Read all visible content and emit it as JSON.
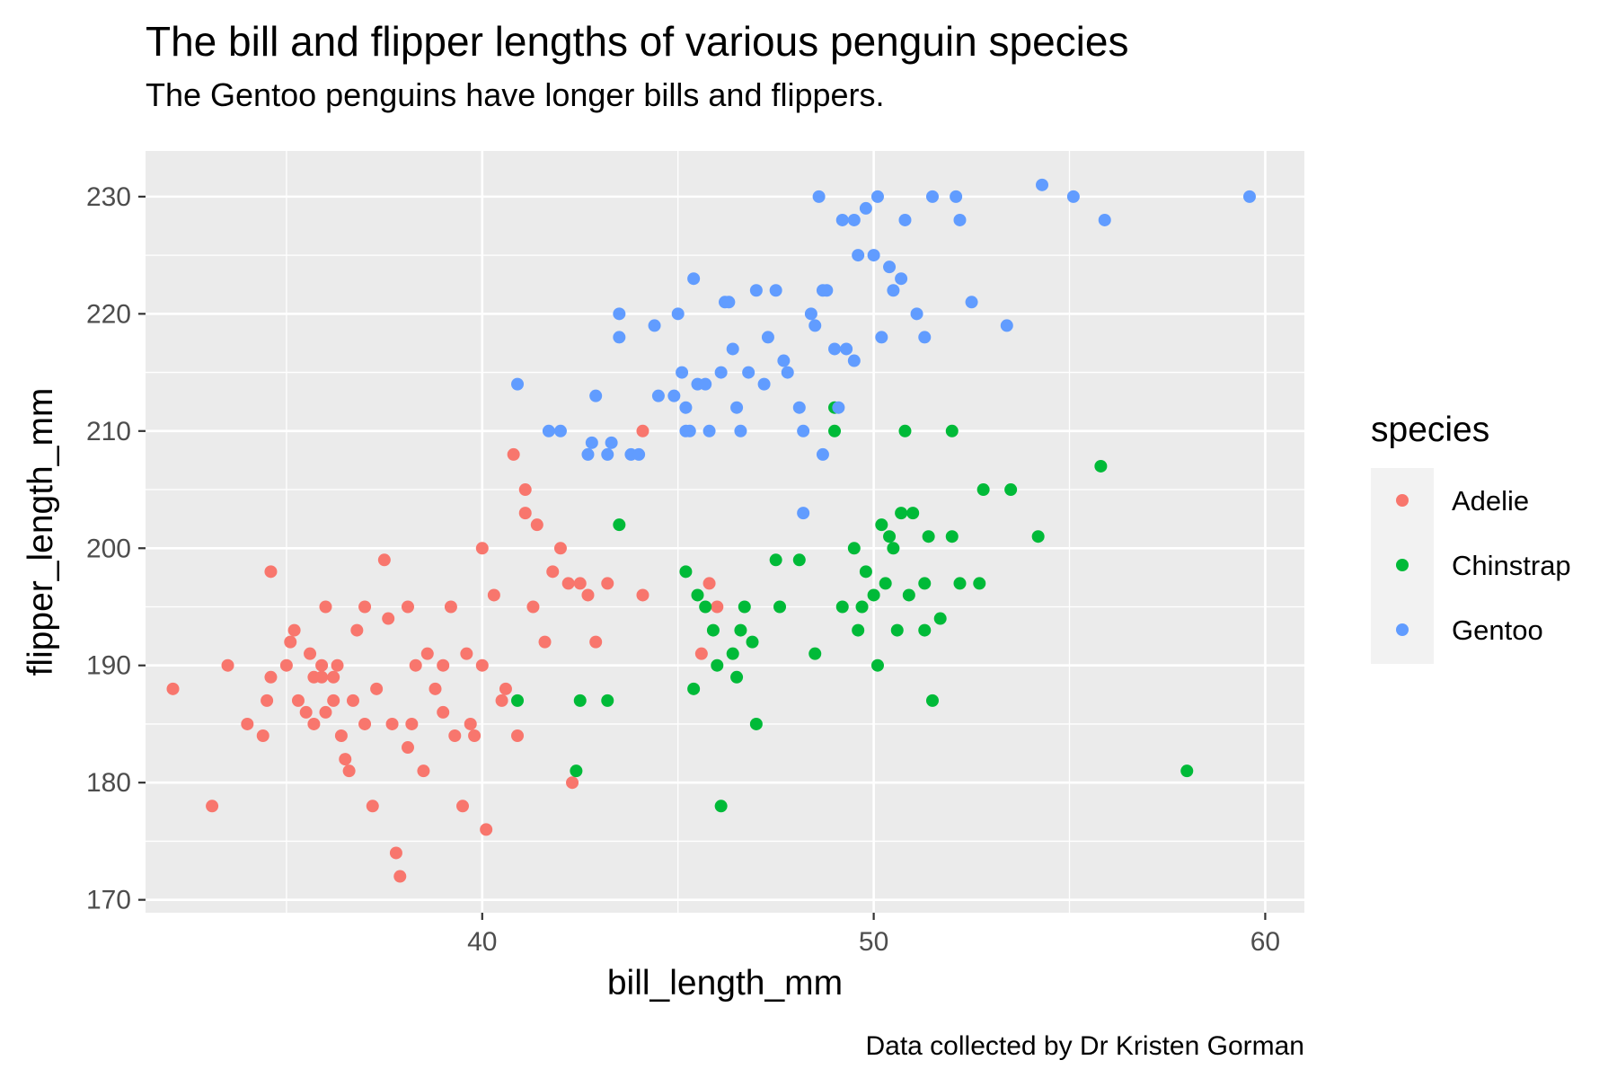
{
  "chart_data": {
    "type": "scatter",
    "title": "The bill and flipper lengths of various penguin species",
    "subtitle": "The Gentoo penguins have longer bills and flippers.",
    "caption": "Data collected by Dr Kristen Gorman",
    "xlabel": "bill_length_mm",
    "ylabel": "flipper_length_mm",
    "xlim": [
      31.4,
      61.0
    ],
    "ylim": [
      168.9,
      233.9
    ],
    "x_ticks": [
      40,
      50,
      60
    ],
    "y_ticks": [
      170,
      180,
      190,
      200,
      210,
      220,
      230
    ],
    "x_tick_labels": [
      "40",
      "50",
      "60"
    ],
    "y_tick_labels": [
      "170",
      "180",
      "190",
      "200",
      "210",
      "220",
      "230"
    ],
    "grid": true,
    "legend": {
      "title": "species",
      "position": "right"
    },
    "series": [
      {
        "name": "Adelie",
        "color": "#F8766D",
        "points": [
          [
            32.1,
            188
          ],
          [
            33.1,
            178
          ],
          [
            33.5,
            190
          ],
          [
            34.0,
            185
          ],
          [
            34.4,
            184
          ],
          [
            34.5,
            187
          ],
          [
            34.6,
            189
          ],
          [
            34.6,
            198
          ],
          [
            35.0,
            190
          ],
          [
            35.1,
            192
          ],
          [
            35.2,
            193
          ],
          [
            35.3,
            187
          ],
          [
            35.5,
            186
          ],
          [
            35.6,
            191
          ],
          [
            35.7,
            185
          ],
          [
            35.7,
            189
          ],
          [
            35.9,
            190
          ],
          [
            35.9,
            189
          ],
          [
            36.0,
            195
          ],
          [
            36.0,
            186
          ],
          [
            36.2,
            187
          ],
          [
            36.3,
            190
          ],
          [
            36.4,
            184
          ],
          [
            36.5,
            182
          ],
          [
            36.6,
            181
          ],
          [
            36.7,
            187
          ],
          [
            36.8,
            193
          ],
          [
            37.0,
            185
          ],
          [
            37.2,
            178
          ],
          [
            37.3,
            188
          ],
          [
            37.5,
            199
          ],
          [
            37.6,
            194
          ],
          [
            37.7,
            185
          ],
          [
            37.8,
            174
          ],
          [
            37.9,
            172
          ],
          [
            38.1,
            183
          ],
          [
            38.2,
            185
          ],
          [
            38.3,
            190
          ],
          [
            38.5,
            181
          ],
          [
            38.6,
            191
          ],
          [
            38.8,
            188
          ],
          [
            39.0,
            186
          ],
          [
            39.2,
            195
          ],
          [
            39.3,
            184
          ],
          [
            39.5,
            178
          ],
          [
            39.6,
            191
          ],
          [
            39.7,
            185
          ],
          [
            39.8,
            184
          ],
          [
            40.0,
            190
          ],
          [
            40.1,
            176
          ],
          [
            40.3,
            196
          ],
          [
            40.5,
            187
          ],
          [
            40.6,
            188
          ],
          [
            40.8,
            208
          ],
          [
            40.9,
            184
          ],
          [
            41.1,
            205
          ],
          [
            41.1,
            203
          ],
          [
            41.3,
            195
          ],
          [
            41.4,
            202
          ],
          [
            41.6,
            192
          ],
          [
            41.8,
            198
          ],
          [
            42.0,
            200
          ],
          [
            42.2,
            197
          ],
          [
            42.3,
            180
          ],
          [
            42.5,
            197
          ],
          [
            42.7,
            196
          ],
          [
            42.9,
            192
          ],
          [
            43.2,
            197
          ],
          [
            44.1,
            210
          ],
          [
            44.1,
            196
          ],
          [
            45.6,
            191
          ],
          [
            45.8,
            197
          ],
          [
            46.0,
            195
          ],
          [
            36.2,
            189
          ],
          [
            37.0,
            195
          ],
          [
            38.1,
            195
          ],
          [
            39.0,
            190
          ],
          [
            40.0,
            200
          ]
        ]
      },
      {
        "name": "Chinstrap",
        "color": "#00BA38",
        "points": [
          [
            40.9,
            187
          ],
          [
            42.4,
            181
          ],
          [
            42.5,
            187
          ],
          [
            43.2,
            187
          ],
          [
            43.5,
            202
          ],
          [
            45.2,
            198
          ],
          [
            45.4,
            188
          ],
          [
            45.5,
            196
          ],
          [
            45.7,
            195
          ],
          [
            45.9,
            193
          ],
          [
            46.0,
            190
          ],
          [
            46.1,
            178
          ],
          [
            46.4,
            191
          ],
          [
            46.5,
            189
          ],
          [
            46.6,
            193
          ],
          [
            46.7,
            195
          ],
          [
            46.9,
            192
          ],
          [
            47.0,
            185
          ],
          [
            47.5,
            199
          ],
          [
            47.6,
            195
          ],
          [
            48.1,
            199
          ],
          [
            48.5,
            191
          ],
          [
            49.0,
            212
          ],
          [
            49.0,
            210
          ],
          [
            49.2,
            195
          ],
          [
            49.5,
            200
          ],
          [
            49.6,
            193
          ],
          [
            49.7,
            195
          ],
          [
            50.0,
            196
          ],
          [
            50.1,
            190
          ],
          [
            50.2,
            202
          ],
          [
            50.3,
            197
          ],
          [
            50.5,
            200
          ],
          [
            50.6,
            193
          ],
          [
            50.7,
            203
          ],
          [
            50.8,
            210
          ],
          [
            50.9,
            196
          ],
          [
            51.0,
            203
          ],
          [
            51.3,
            193
          ],
          [
            51.4,
            201
          ],
          [
            51.5,
            187
          ],
          [
            51.7,
            194
          ],
          [
            52.0,
            201
          ],
          [
            52.0,
            210
          ],
          [
            52.2,
            197
          ],
          [
            52.7,
            197
          ],
          [
            52.8,
            205
          ],
          [
            53.5,
            205
          ],
          [
            54.2,
            201
          ],
          [
            55.8,
            207
          ],
          [
            58.0,
            181
          ],
          [
            49.8,
            198
          ],
          [
            50.4,
            201
          ],
          [
            51.3,
            197
          ]
        ]
      },
      {
        "name": "Gentoo",
        "color": "#619CFF",
        "points": [
          [
            40.9,
            214
          ],
          [
            41.7,
            210
          ],
          [
            42.0,
            210
          ],
          [
            42.7,
            208
          ],
          [
            42.8,
            209
          ],
          [
            42.9,
            213
          ],
          [
            43.2,
            208
          ],
          [
            43.3,
            209
          ],
          [
            43.5,
            218
          ],
          [
            43.5,
            220
          ],
          [
            43.8,
            208
          ],
          [
            44.0,
            208
          ],
          [
            44.4,
            219
          ],
          [
            44.9,
            213
          ],
          [
            45.0,
            220
          ],
          [
            45.1,
            215
          ],
          [
            45.2,
            212
          ],
          [
            45.2,
            210
          ],
          [
            45.3,
            210
          ],
          [
            45.5,
            214
          ],
          [
            45.7,
            214
          ],
          [
            45.8,
            210
          ],
          [
            46.1,
            215
          ],
          [
            46.2,
            221
          ],
          [
            46.4,
            217
          ],
          [
            46.5,
            212
          ],
          [
            46.6,
            210
          ],
          [
            46.8,
            215
          ],
          [
            47.0,
            222
          ],
          [
            47.2,
            214
          ],
          [
            47.5,
            222
          ],
          [
            47.7,
            216
          ],
          [
            47.8,
            215
          ],
          [
            48.1,
            212
          ],
          [
            48.2,
            210
          ],
          [
            48.4,
            220
          ],
          [
            48.5,
            219
          ],
          [
            48.7,
            222
          ],
          [
            48.8,
            222
          ],
          [
            49.0,
            217
          ],
          [
            49.1,
            212
          ],
          [
            49.3,
            217
          ],
          [
            49.5,
            216
          ],
          [
            49.6,
            225
          ],
          [
            49.8,
            229
          ],
          [
            50.0,
            225
          ],
          [
            50.1,
            230
          ],
          [
            50.2,
            218
          ],
          [
            50.4,
            224
          ],
          [
            50.5,
            222
          ],
          [
            50.7,
            223
          ],
          [
            50.8,
            228
          ],
          [
            51.1,
            220
          ],
          [
            51.3,
            218
          ],
          [
            51.5,
            230
          ],
          [
            52.1,
            230
          ],
          [
            52.2,
            228
          ],
          [
            52.5,
            221
          ],
          [
            53.4,
            219
          ],
          [
            54.3,
            231
          ],
          [
            55.1,
            230
          ],
          [
            55.9,
            228
          ],
          [
            59.6,
            230
          ],
          [
            48.6,
            230
          ],
          [
            49.2,
            228
          ],
          [
            44.5,
            213
          ],
          [
            45.4,
            223
          ],
          [
            46.3,
            221
          ],
          [
            47.3,
            218
          ],
          [
            48.2,
            203
          ],
          [
            48.7,
            208
          ],
          [
            49.5,
            228
          ]
        ]
      }
    ]
  }
}
